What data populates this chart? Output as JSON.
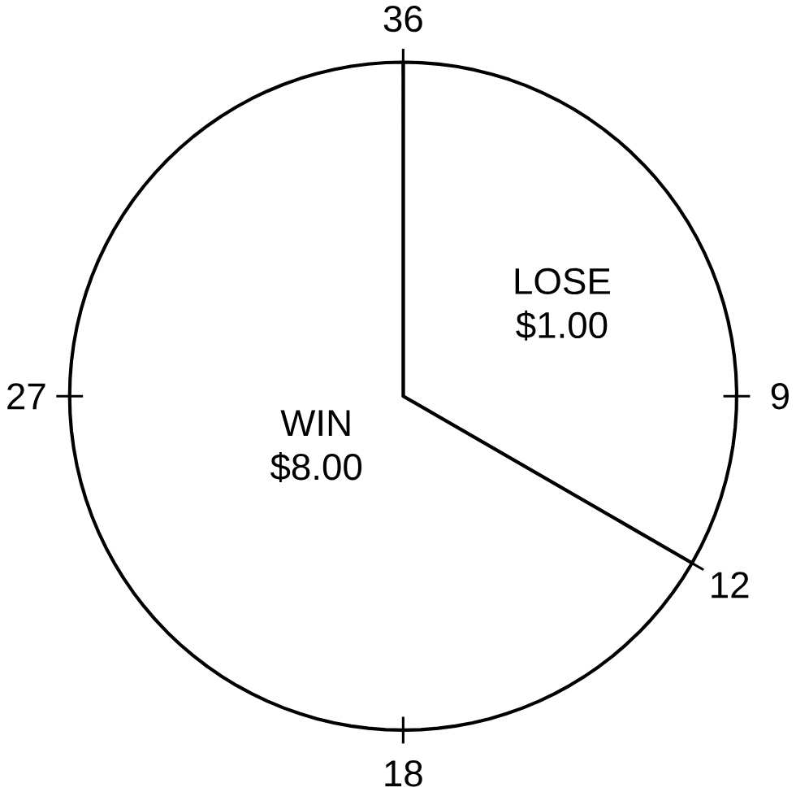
{
  "chart_data": {
    "type": "pie",
    "categories": [
      "LOSE $1.00",
      "WIN $8.00"
    ],
    "values": [
      33.33,
      66.67
    ],
    "colors": [
      "#ffffff",
      "#ffffff"
    ],
    "annotations": [
      "9",
      "12",
      "18",
      "27",
      "36"
    ]
  }
}
